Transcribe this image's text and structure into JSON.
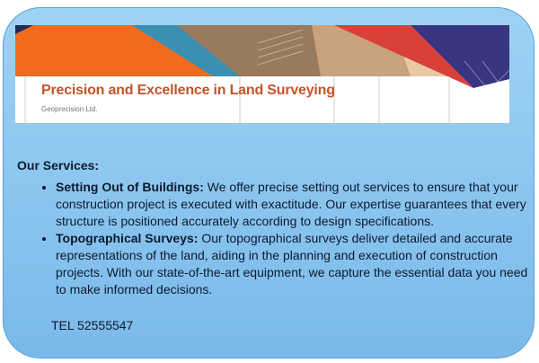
{
  "banner": {
    "title": "Precision and Excellence in Land Surveying",
    "company": "Geoprecision Ltd."
  },
  "services": {
    "heading": "Our Services:",
    "items": [
      {
        "title": "Setting Out of Buildings:",
        "text": " We offer precise setting out services to ensure that your construction project is executed with exactitude. Our expertise guarantees that every structure is positioned accurately according to design specifications."
      },
      {
        "title": "Topographical Surveys:",
        "text": " Our topographical surveys deliver detailed and accurate representations of the land, aiding in the planning and execution of construction projects. With our state-of-the-art equipment, we capture the essential data you need to make informed decisions."
      }
    ]
  },
  "contact": {
    "tel": "TEL 52555547"
  },
  "colors": {
    "title": "#c2542a",
    "card": "#8cc6ef",
    "text": "#0e1a2e"
  }
}
